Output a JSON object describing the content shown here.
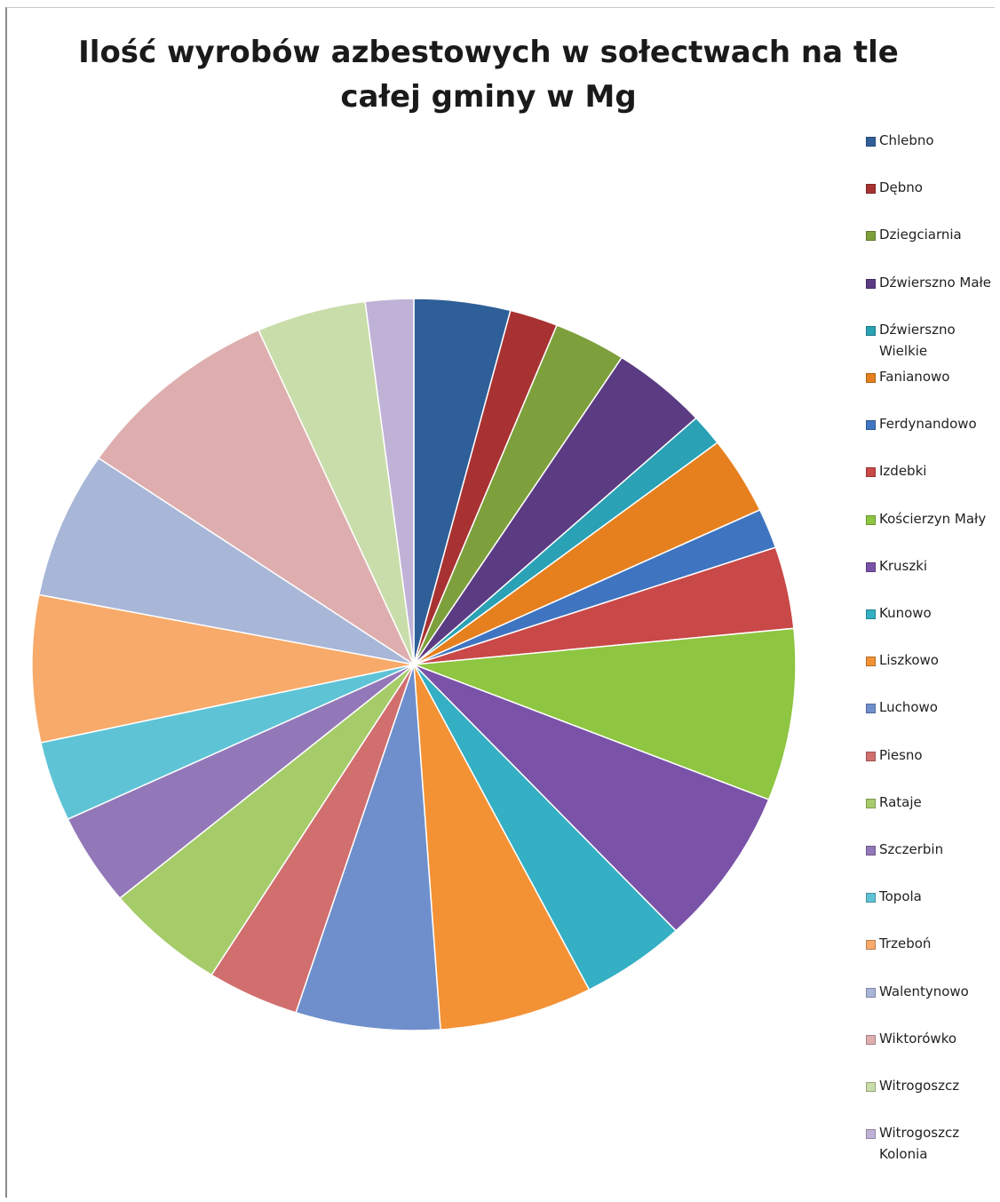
{
  "chart_data": {
    "type": "pie",
    "title_lines": [
      "Ilość wyrobów azbestowych w sołectwach na tle",
      "całej gminy w Mg"
    ],
    "legend_position": "right",
    "series": [
      {
        "name": "",
        "categories": [
          "Chlebno",
          "Dębno",
          "Dziegciarnia",
          "Dźwierszno Małe",
          "Dźwierszno Wielkie",
          "Fanianowo",
          "Ferdynandowo",
          "Izdebki",
          "Kościerzyn Mały",
          "Kruszki",
          "Kunowo",
          "Liszkowo",
          "Luchowo",
          "Piesno",
          "Rataje",
          "Szczerbin",
          "Topola",
          "Trzeboń",
          "Walentynowo",
          "Wiktorówko",
          "Witrogoszcz",
          "Witrogoszcz Kolonia"
        ],
        "values": [
          4.4,
          2.2,
          3.3,
          4.4,
          1.5,
          3.7,
          1.9,
          3.9,
          8.2,
          7.5,
          4.8,
          7.0,
          6.6,
          4.2,
          5.5,
          4.4,
          3.8,
          7.0,
          7.0,
          9.5,
          5.0,
          2.2
        ],
        "colors": [
          "#2e5f98",
          "#a83232",
          "#7ea03c",
          "#5b3b82",
          "#2aa1b5",
          "#e6801f",
          "#3f74c0",
          "#c94848",
          "#8ec541",
          "#7a52a8",
          "#34afc4",
          "#f39235",
          "#6f8fcc",
          "#d16e6e",
          "#a6cc6a",
          "#9278b8",
          "#5fc3d6",
          "#f7aa6a",
          "#a8b6d8",
          "#deaeae",
          "#c9ddaa",
          "#c0b2d6"
        ]
      }
    ]
  },
  "legend": {
    "items": [
      {
        "label": "Chlebno",
        "color": "#2e5f98"
      },
      {
        "label": "Dębno",
        "color": "#a83232"
      },
      {
        "label": "Dziegciarnia",
        "color": "#7ea03c"
      },
      {
        "label": "Dźwierszno Małe",
        "color": "#5b3b82"
      },
      {
        "label": "Dźwierszno Wielkie",
        "color": "#2aa1b5"
      },
      {
        "label": "Fanianowo",
        "color": "#e6801f"
      },
      {
        "label": "Ferdynandowo",
        "color": "#3f74c0"
      },
      {
        "label": "Izdebki",
        "color": "#c94848"
      },
      {
        "label": "Kościerzyn Mały",
        "color": "#8ec541"
      },
      {
        "label": "Kruszki",
        "color": "#7a52a8"
      },
      {
        "label": "Kunowo",
        "color": "#34afc4"
      },
      {
        "label": "Liszkowo",
        "color": "#f39235"
      },
      {
        "label": "Luchowo",
        "color": "#6f8fcc"
      },
      {
        "label": "Piesno",
        "color": "#d16e6e"
      },
      {
        "label": "Rataje",
        "color": "#a6cc6a"
      },
      {
        "label": "Szczerbin",
        "color": "#9278b8"
      },
      {
        "label": "Topola",
        "color": "#5fc3d6"
      },
      {
        "label": "Trzeboń",
        "color": "#f7aa6a"
      },
      {
        "label": "Walentynowo",
        "color": "#a8b6d8"
      },
      {
        "label": "Wiktorówko",
        "color": "#deaeae"
      },
      {
        "label": "Witrogoszcz",
        "color": "#c9ddaa"
      },
      {
        "label": "Witrogoszcz Kolonia",
        "color": "#c0b2d6"
      }
    ]
  }
}
